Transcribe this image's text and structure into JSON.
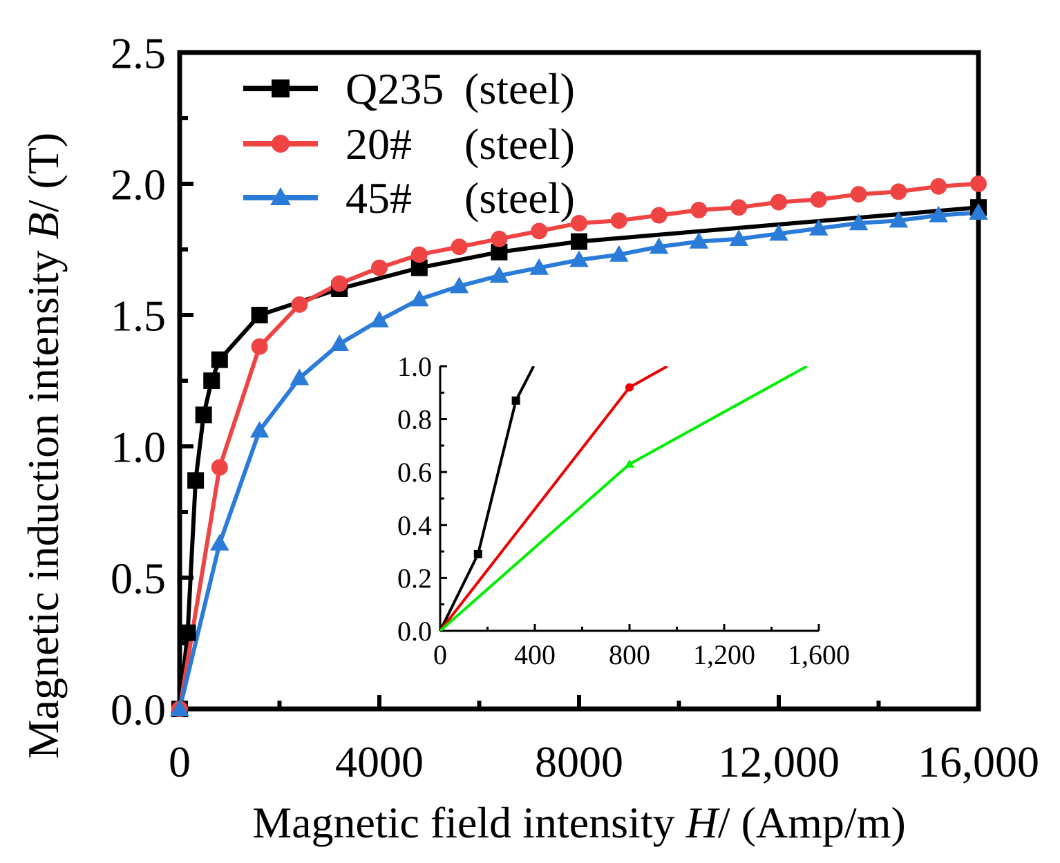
{
  "chart_data": [
    {
      "type": "line",
      "role": "main",
      "xlabel": "Magnetic field intensity ",
      "xlabel_var": "H",
      "xlabel_unit": "/ (Amp/m)",
      "ylabel": "Magnetic induction intensity ",
      "ylabel_var": "B",
      "ylabel_unit": "/ (T)",
      "xlim": [
        0,
        16000
      ],
      "ylim": [
        0,
        2.5
      ],
      "x_ticks": [
        0,
        4000,
        8000,
        12000,
        16000
      ],
      "x_tick_labels": [
        "0",
        "4000",
        "8000",
        "12,000",
        "16,000"
      ],
      "y_ticks": [
        0,
        0.5,
        1.0,
        1.5,
        2.0,
        2.5
      ],
      "y_tick_labels": [
        "0.0",
        "0.5",
        "1.0",
        "1.5",
        "2.0",
        "2.5"
      ],
      "legend_position": "top-left",
      "series": [
        {
          "name": "Q235",
          "name_suffix": "(steel)",
          "color": "#000000",
          "marker": "square",
          "x": [
            0,
            160,
            320,
            480,
            640,
            800,
            1600,
            3200,
            4800,
            6400,
            8000,
            16000
          ],
          "y": [
            0,
            0.29,
            0.87,
            1.12,
            1.25,
            1.33,
            1.5,
            1.6,
            1.68,
            1.74,
            1.78,
            1.91
          ]
        },
        {
          "name": "20#",
          "name_suffix": "(steel)",
          "color": "#ef4444",
          "marker": "circle",
          "x": [
            0,
            800,
            1600,
            2400,
            3200,
            4000,
            4800,
            5600,
            6400,
            7200,
            8000,
            8800,
            9600,
            10400,
            11200,
            12000,
            12800,
            13600,
            14400,
            15200,
            16000
          ],
          "y": [
            0,
            0.92,
            1.38,
            1.54,
            1.62,
            1.68,
            1.73,
            1.76,
            1.79,
            1.82,
            1.85,
            1.86,
            1.88,
            1.9,
            1.91,
            1.93,
            1.94,
            1.96,
            1.97,
            1.99,
            2.0
          ]
        },
        {
          "name": "45#",
          "name_suffix": "(steel)",
          "color": "#2b7bd9",
          "marker": "triangle",
          "x": [
            0,
            800,
            1600,
            2400,
            3200,
            4000,
            4800,
            5600,
            6400,
            7200,
            8000,
            8800,
            9600,
            10400,
            11200,
            12000,
            12800,
            13600,
            14400,
            15200,
            16000
          ],
          "y": [
            0,
            0.63,
            1.06,
            1.26,
            1.39,
            1.48,
            1.56,
            1.61,
            1.65,
            1.68,
            1.71,
            1.73,
            1.76,
            1.78,
            1.79,
            1.81,
            1.83,
            1.85,
            1.86,
            1.88,
            1.89
          ]
        }
      ]
    },
    {
      "type": "line",
      "role": "inset",
      "xlim": [
        0,
        1600
      ],
      "ylim": [
        0,
        1.0
      ],
      "x_ticks": [
        0,
        400,
        800,
        1200,
        1600
      ],
      "x_tick_labels": [
        "0",
        "400",
        "800",
        "1,200",
        "1,600"
      ],
      "y_ticks": [
        0,
        0.2,
        0.4,
        0.6,
        0.8,
        1.0
      ],
      "y_tick_labels": [
        "0.0",
        "0.2",
        "0.4",
        "0.6",
        "0.8",
        "1.0"
      ],
      "series": [
        {
          "name": "Q235",
          "color": "#000000",
          "marker": "square",
          "x": [
            0,
            160,
            320,
            395
          ],
          "y": [
            0,
            0.29,
            0.87,
            1.0
          ]
        },
        {
          "name": "20#",
          "color": "#ee0000",
          "marker": "circle",
          "x": [
            0,
            800,
            960
          ],
          "y": [
            0,
            0.92,
            1.0
          ]
        },
        {
          "name": "45#",
          "color": "#00ee00",
          "marker": "triangle",
          "x": [
            0,
            800,
            1550
          ],
          "y": [
            0,
            0.63,
            1.0
          ]
        }
      ]
    }
  ]
}
